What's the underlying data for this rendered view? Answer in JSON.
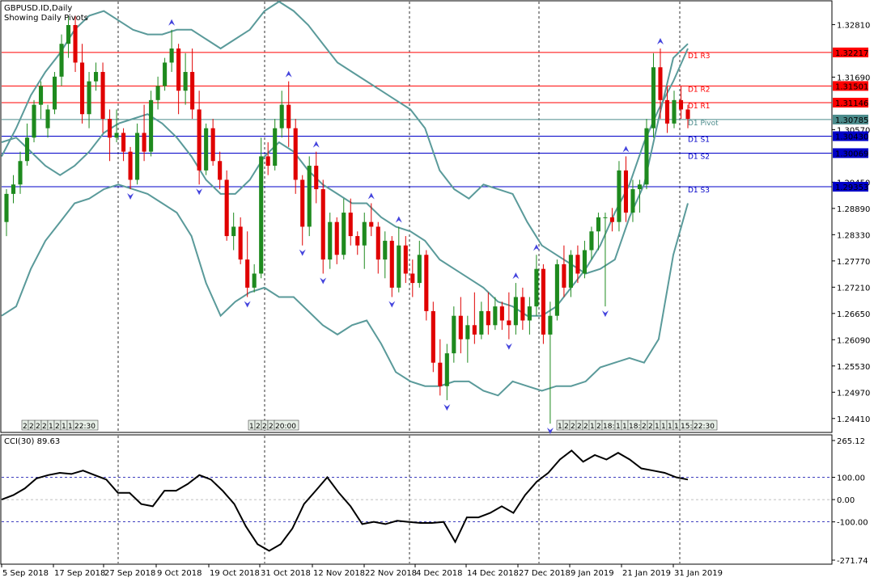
{
  "chart_data": {
    "type": "candlestick",
    "header": {
      "symbol_line": "GBPUSD.ID,Daily",
      "indicator_line": "Showing Daily Pivots"
    },
    "y_axis_ticks": [
      "1.32810",
      "1.31690",
      "1.30570",
      "1.29450",
      "1.28890",
      "1.28330",
      "1.27770",
      "1.27210",
      "1.26650",
      "1.26090",
      "1.25530",
      "1.24970",
      "1.24410"
    ],
    "y_range": [
      1.2413,
      1.333
    ],
    "pivot_levels": [
      {
        "name": "D1 R3",
        "value": 1.32217,
        "label": "1.32217",
        "color": "#ff0000"
      },
      {
        "name": "D1 R2",
        "value": 1.31501,
        "label": "1.31501",
        "color": "#ff0000"
      },
      {
        "name": "D1 R1",
        "value": 1.31146,
        "label": "1.31146",
        "color": "#ff0000"
      },
      {
        "name": "D1 Pivot",
        "value": 1.30785,
        "label": "1.30785",
        "color": "#4b8b8b"
      },
      {
        "name": "D1 S1",
        "value": 1.3043,
        "label": "1.30430",
        "color": "#0000c8"
      },
      {
        "name": "D1 S2",
        "value": 1.30069,
        "label": "1.30069",
        "color": "#0000c8"
      },
      {
        "name": "D1 S3",
        "value": 1.29353,
        "label": "1.29353",
        "color": "#0000c8"
      }
    ],
    "x_axis_labels": [
      "5 Sep 2018",
      "17 Sep 2018",
      "27 Sep 2018",
      "9 Oct 2018",
      "19 Oct 2018",
      "31 Oct 2018",
      "12 Nov 2018",
      "22 Nov 2018",
      "4 Dec 2018",
      "14 Dec 2018",
      "27 Dec 2018",
      "9 Jan 2019",
      "21 Jan 2019",
      "31 Jan 2019"
    ],
    "candles": [
      [
        1.286,
        1.293,
        1.283,
        1.292
      ],
      [
        1.292,
        1.296,
        1.29,
        1.294
      ],
      [
        1.294,
        1.301,
        1.292,
        1.299
      ],
      [
        1.299,
        1.307,
        1.298,
        1.304
      ],
      [
        1.304,
        1.312,
        1.303,
        1.311
      ],
      [
        1.311,
        1.316,
        1.308,
        1.315
      ],
      [
        1.306,
        1.311,
        1.304,
        1.31
      ],
      [
        1.31,
        1.318,
        1.309,
        1.317
      ],
      [
        1.317,
        1.326,
        1.315,
        1.324
      ],
      [
        1.324,
        1.33,
        1.321,
        1.328
      ],
      [
        1.328,
        1.33,
        1.318,
        1.32
      ],
      [
        1.32,
        1.324,
        1.307,
        1.309
      ],
      [
        1.309,
        1.318,
        1.306,
        1.316
      ],
      [
        1.316,
        1.32,
        1.314,
        1.318
      ],
      [
        1.318,
        1.32,
        1.305,
        1.308
      ],
      [
        1.308,
        1.31,
        1.299,
        1.304
      ],
      [
        1.304,
        1.31,
        1.303,
        1.305
      ],
      [
        1.305,
        1.306,
        1.299,
        1.301
      ],
      [
        1.301,
        1.302,
        1.293,
        1.295
      ],
      [
        1.295,
        1.307,
        1.294,
        1.305
      ],
      [
        1.305,
        1.311,
        1.299,
        1.301
      ],
      [
        1.301,
        1.314,
        1.3,
        1.312
      ],
      [
        1.312,
        1.317,
        1.31,
        1.315
      ],
      [
        1.315,
        1.321,
        1.314,
        1.32
      ],
      [
        1.32,
        1.327,
        1.318,
        1.323
      ],
      [
        1.323,
        1.324,
        1.309,
        1.314
      ],
      [
        1.314,
        1.322,
        1.311,
        1.318
      ],
      [
        1.318,
        1.323,
        1.308,
        1.31
      ],
      [
        1.31,
        1.314,
        1.294,
        1.297
      ],
      [
        1.297,
        1.307,
        1.296,
        1.306
      ],
      [
        1.306,
        1.308,
        1.298,
        1.299
      ],
      [
        1.299,
        1.301,
        1.293,
        1.295
      ],
      [
        1.295,
        1.297,
        1.282,
        1.283
      ],
      [
        1.283,
        1.288,
        1.28,
        1.285
      ],
      [
        1.285,
        1.287,
        1.277,
        1.278
      ],
      [
        1.278,
        1.284,
        1.27,
        1.272
      ],
      [
        1.272,
        1.277,
        1.271,
        1.275
      ],
      [
        1.275,
        1.304,
        1.274,
        1.3
      ],
      [
        1.3,
        1.303,
        1.296,
        1.298
      ],
      [
        1.298,
        1.308,
        1.297,
        1.306
      ],
      [
        1.306,
        1.314,
        1.304,
        1.311
      ],
      [
        1.311,
        1.316,
        1.302,
        1.306
      ],
      [
        1.306,
        1.308,
        1.292,
        1.295
      ],
      [
        1.295,
        1.296,
        1.281,
        1.285
      ],
      [
        1.285,
        1.3,
        1.283,
        1.298
      ],
      [
        1.298,
        1.301,
        1.29,
        1.293
      ],
      [
        1.293,
        1.295,
        1.275,
        1.278
      ],
      [
        1.278,
        1.288,
        1.276,
        1.286
      ],
      [
        1.286,
        1.287,
        1.277,
        1.279
      ],
      [
        1.279,
        1.291,
        1.278,
        1.288
      ],
      [
        1.288,
        1.291,
        1.281,
        1.283
      ],
      [
        1.283,
        1.284,
        1.279,
        1.281
      ],
      [
        1.281,
        1.288,
        1.276,
        1.286
      ],
      [
        1.286,
        1.29,
        1.283,
        1.285
      ],
      [
        1.285,
        1.286,
        1.275,
        1.278
      ],
      [
        1.278,
        1.284,
        1.274,
        1.282
      ],
      [
        1.282,
        1.283,
        1.27,
        1.272
      ],
      [
        1.272,
        1.285,
        1.271,
        1.281
      ],
      [
        1.281,
        1.283,
        1.273,
        1.275
      ],
      [
        1.275,
        1.278,
        1.27,
        1.273
      ],
      [
        1.273,
        1.282,
        1.272,
        1.279
      ],
      [
        1.279,
        1.28,
        1.265,
        1.267
      ],
      [
        1.267,
        1.269,
        1.254,
        1.256
      ],
      [
        1.256,
        1.261,
        1.249,
        1.251
      ],
      [
        1.251,
        1.26,
        1.248,
        1.258
      ],
      [
        1.258,
        1.268,
        1.256,
        1.266
      ],
      [
        1.266,
        1.27,
        1.258,
        1.261
      ],
      [
        1.261,
        1.266,
        1.256,
        1.264
      ],
      [
        1.264,
        1.271,
        1.26,
        1.262
      ],
      [
        1.262,
        1.269,
        1.261,
        1.267
      ],
      [
        1.267,
        1.271,
        1.262,
        1.264
      ],
      [
        1.264,
        1.27,
        1.263,
        1.268
      ],
      [
        1.268,
        1.269,
        1.263,
        1.265
      ],
      [
        1.265,
        1.271,
        1.261,
        1.264
      ],
      [
        1.264,
        1.273,
        1.262,
        1.27
      ],
      [
        1.27,
        1.272,
        1.263,
        1.265
      ],
      [
        1.265,
        1.27,
        1.262,
        1.268
      ],
      [
        1.268,
        1.279,
        1.266,
        1.276
      ],
      [
        1.276,
        1.277,
        1.26,
        1.262
      ],
      [
        1.262,
        1.269,
        1.243,
        1.266
      ],
      [
        1.266,
        1.278,
        1.265,
        1.277
      ],
      [
        1.277,
        1.281,
        1.27,
        1.272
      ],
      [
        1.272,
        1.28,
        1.27,
        1.279
      ],
      [
        1.279,
        1.281,
        1.273,
        1.275
      ],
      [
        1.275,
        1.282,
        1.274,
        1.28
      ],
      [
        1.28,
        1.285,
        1.278,
        1.284
      ],
      [
        1.284,
        1.288,
        1.28,
        1.287
      ],
      [
        1.287,
        1.288,
        1.268,
        1.287
      ],
      [
        1.287,
        1.289,
        1.284,
        1.286
      ],
      [
        1.286,
        1.299,
        1.284,
        1.297
      ],
      [
        1.297,
        1.3,
        1.286,
        1.288
      ],
      [
        1.288,
        1.295,
        1.286,
        1.293
      ],
      [
        1.293,
        1.295,
        1.288,
        1.294
      ],
      [
        1.294,
        1.308,
        1.293,
        1.306
      ],
      [
        1.306,
        1.322,
        1.304,
        1.319
      ],
      [
        1.319,
        1.323,
        1.308,
        1.312
      ],
      [
        1.312,
        1.315,
        1.305,
        1.307
      ],
      [
        1.307,
        1.314,
        1.306,
        1.312
      ],
      [
        1.312,
        1.315,
        1.308,
        1.31
      ],
      [
        1.31,
        1.311,
        1.306,
        1.308
      ]
    ],
    "candle_colors": {
      "bull": "#1e8a1e",
      "bear": "#e00000"
    },
    "bollinger": {
      "color": "#5a9a9a",
      "upper": [
        1.3,
        1.306,
        1.313,
        1.318,
        1.322,
        1.327,
        1.33,
        1.331,
        1.329,
        1.327,
        1.326,
        1.326,
        1.327,
        1.327,
        1.325,
        1.323,
        1.325,
        1.327,
        1.331,
        1.333,
        1.331,
        1.328,
        1.324,
        1.32,
        1.318,
        1.316,
        1.314,
        1.312,
        1.31,
        1.306,
        1.297,
        1.293,
        1.291,
        1.294,
        1.293,
        1.292,
        1.286,
        1.281,
        1.279,
        1.277,
        1.275,
        1.276,
        1.278,
        1.287,
        1.294,
        1.308,
        1.321,
        1.324
      ],
      "mid": [
        1.303,
        1.304,
        1.301,
        1.298,
        1.296,
        1.298,
        1.301,
        1.305,
        1.307,
        1.308,
        1.309,
        1.307,
        1.304,
        1.3,
        1.295,
        1.292,
        1.292,
        1.295,
        1.3,
        1.303,
        1.301,
        1.297,
        1.294,
        1.292,
        1.29,
        1.29,
        1.287,
        1.285,
        1.284,
        1.282,
        1.278,
        1.276,
        1.274,
        1.272,
        1.269,
        1.268,
        1.266,
        1.266,
        1.268,
        1.272,
        1.276,
        1.281,
        1.288,
        1.294,
        1.303,
        1.31,
        1.316,
        1.323
      ],
      "lower": [
        1.266,
        1.268,
        1.276,
        1.282,
        1.286,
        1.29,
        1.291,
        1.293,
        1.294,
        1.293,
        1.292,
        1.29,
        1.288,
        1.283,
        1.273,
        1.266,
        1.269,
        1.271,
        1.272,
        1.27,
        1.27,
        1.267,
        1.264,
        1.262,
        1.264,
        1.265,
        1.26,
        1.254,
        1.252,
        1.251,
        1.251,
        1.252,
        1.252,
        1.25,
        1.249,
        1.252,
        1.251,
        1.25,
        1.251,
        1.251,
        1.252,
        1.255,
        1.256,
        1.257,
        1.256,
        1.261,
        1.279,
        1.29
      ]
    },
    "time_tags": [
      {
        "text": "2|2|2|2|1|2|1|1|22:30",
        "at": 0
      },
      {
        "text": "1|2|2|2|20:00",
        "at": 0
      },
      {
        "text": "1|2|2|2|2|1|2|18:|1|1|18:|2|2|1|1|1|1|15:|22:30",
        "at": 0
      }
    ],
    "cci": {
      "label": "CCI(30) 89.63",
      "y_ticks": [
        "265.12",
        "100.00",
        "0.00",
        "-100.00",
        "-271.74"
      ],
      "y_range": [
        -271.74,
        265.12
      ],
      "values": [
        0,
        20,
        50,
        95,
        110,
        120,
        115,
        130,
        110,
        90,
        30,
        30,
        -20,
        -30,
        40,
        40,
        70,
        110,
        90,
        40,
        -20,
        -120,
        -200,
        -230,
        -200,
        -130,
        -20,
        40,
        100,
        30,
        -30,
        -110,
        -100,
        -110,
        -95,
        -100,
        -105,
        -105,
        -100,
        -190,
        -80,
        -80,
        -60,
        -30,
        -60,
        20,
        80,
        120,
        180,
        220,
        170,
        200,
        180,
        210,
        180,
        140,
        130,
        120,
        100,
        90
      ],
      "color": "#000000"
    }
  }
}
